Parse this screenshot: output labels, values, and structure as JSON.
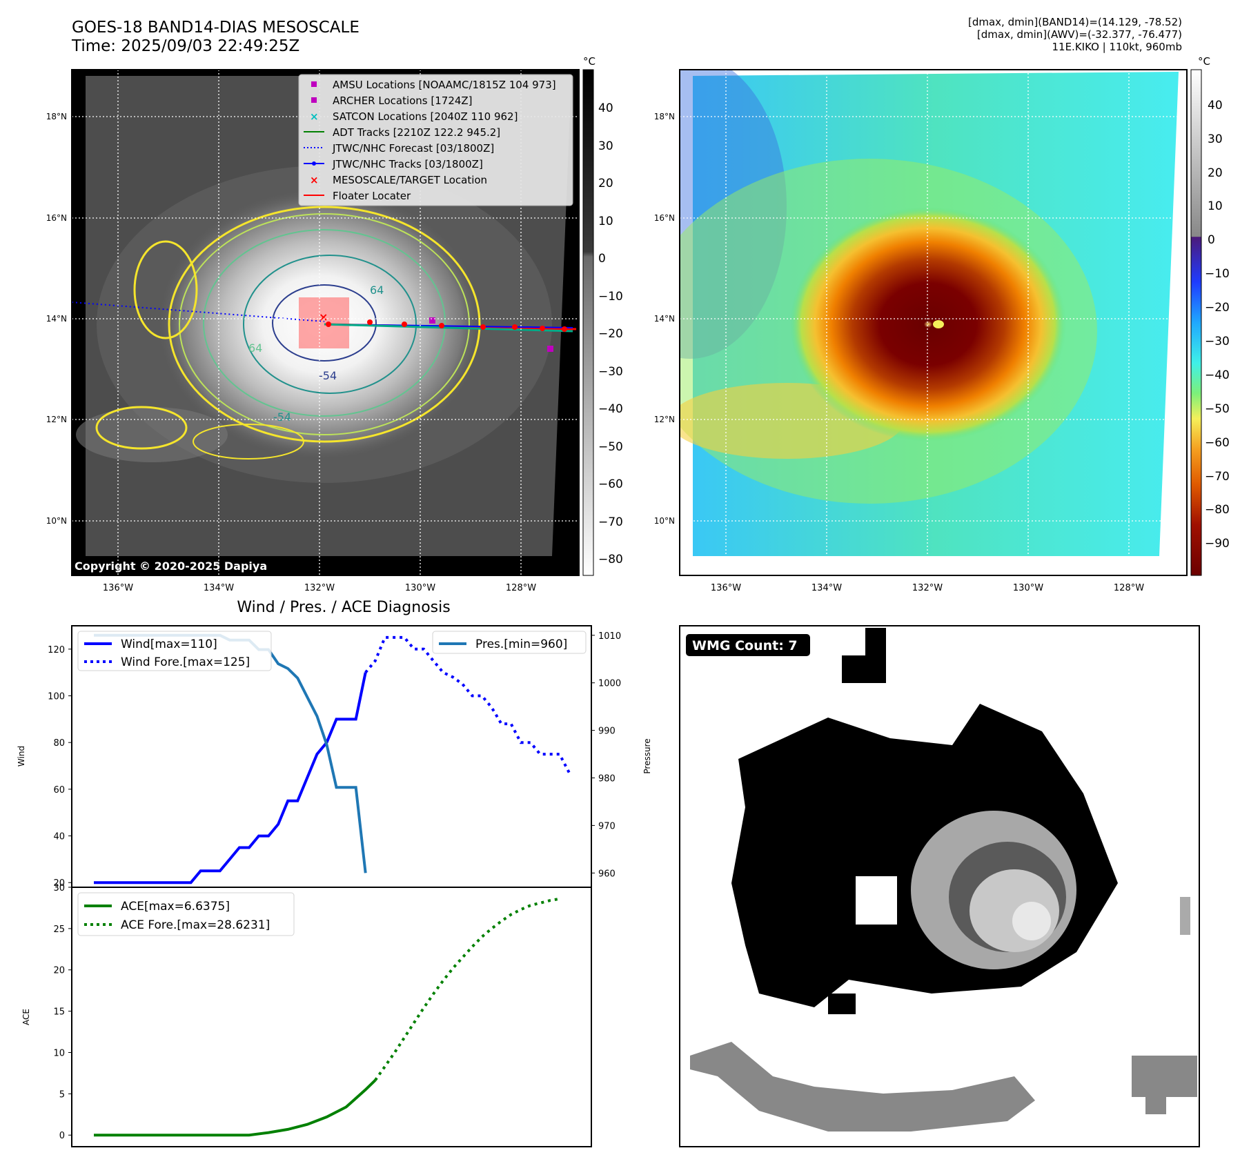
{
  "header": {
    "title_line1": "GOES-18 BAND14-DIAS MESOSCALE",
    "title_line2": "Time: 2025/09/03 22:49:25Z",
    "info_line1": "[dmax, dmin](BAND14)=(14.129, -78.52)",
    "info_line2": "[dmax, dmin](AWV)=(-32.377, -76.477)",
    "info_line3": "11E.KIKO | 110kt, 960mb"
  },
  "ir_panel": {
    "copyright": "Copyright © 2020-2025 Dapiya",
    "lat_labels": [
      "18°N",
      "16°N",
      "14°N",
      "12°N",
      "10°N"
    ],
    "lon_labels": [
      "136°W",
      "134°W",
      "132°W",
      "130°W",
      "128°W"
    ],
    "colorbar_unit": "°C",
    "colorbar_ticks": [
      "40",
      "30",
      "20",
      "10",
      "0",
      "−10",
      "−20",
      "−30",
      "−40",
      "−50",
      "−60",
      "−70",
      "−80"
    ],
    "contour_labels": [
      "64",
      "-54",
      "-54",
      "64"
    ],
    "legend": [
      {
        "label": "AMSU Locations [NOAAMC/1815Z 104 973]",
        "color": "#bf00bf",
        "marker": "square"
      },
      {
        "label": "ARCHER Locations [1724Z]",
        "color": "#bf00bf",
        "marker": "square"
      },
      {
        "label": "SATCON Locations [2040Z 110 962]",
        "color": "#00bfbf",
        "marker": "x"
      },
      {
        "label": "ADT Tracks [2210Z 122.2 945.2]",
        "color": "#008000",
        "marker": "line"
      },
      {
        "label": "JTWC/NHC Forecast [03/1800Z]",
        "color": "#0000ff",
        "marker": "dotted"
      },
      {
        "label": "JTWC/NHC Tracks [03/1800Z]",
        "color": "#0000ff",
        "marker": "line-dot"
      },
      {
        "label": "MESOSCALE/TARGET Location",
        "color": "#ff0000",
        "marker": "x"
      },
      {
        "label": "Floater Locater",
        "color": "#ff0000",
        "marker": "line"
      }
    ]
  },
  "awv_panel": {
    "lat_labels": [
      "18°N",
      "16°N",
      "14°N",
      "12°N",
      "10°N"
    ],
    "lon_labels": [
      "136°W",
      "134°W",
      "132°W",
      "130°W",
      "128°W"
    ],
    "colorbar_unit": "°C",
    "colorbar_ticks": [
      "40",
      "30",
      "20",
      "10",
      "0",
      "−10",
      "−20",
      "−30",
      "−40",
      "−50",
      "−60",
      "−70",
      "−80",
      "−90"
    ]
  },
  "wmg_panel": {
    "badge": "WMG Count: 7"
  },
  "chart_data": [
    {
      "type": "line",
      "title": "Wind / Pres. / ACE Diagnosis",
      "ylabel": "Wind",
      "ylabel_right": "Pressure",
      "ylim": [
        18,
        130
      ],
      "ylim_right": [
        957,
        1012
      ],
      "yticks": [
        "20",
        "40",
        "60",
        "80",
        "100",
        "120"
      ],
      "yticks_right": [
        "960",
        "970",
        "980",
        "990",
        "1000",
        "1010"
      ],
      "x": [
        0,
        1,
        2,
        3,
        4,
        5,
        6,
        7,
        8,
        9,
        10,
        11,
        12,
        13,
        14,
        15,
        16,
        17,
        18,
        19,
        20,
        21,
        22,
        23,
        24,
        25,
        26,
        27,
        28,
        29,
        30,
        31,
        32,
        33,
        34,
        35,
        36,
        37,
        38,
        39,
        40,
        41,
        42,
        43,
        44,
        45,
        46,
        47,
        48,
        49
      ],
      "series": [
        {
          "name": "Wind[max=110]",
          "axis": "left",
          "style": "solid",
          "color": "#0000ff",
          "points": [
            [
              0,
              20
            ],
            [
              10,
              20
            ],
            [
              11,
              25
            ],
            [
              13,
              25
            ],
            [
              14,
              30
            ],
            [
              15,
              35
            ],
            [
              16,
              35
            ],
            [
              17,
              40
            ],
            [
              18,
              40
            ],
            [
              19,
              45
            ],
            [
              20,
              55
            ],
            [
              21,
              55
            ],
            [
              22,
              65
            ],
            [
              23,
              75
            ],
            [
              24,
              80
            ],
            [
              25,
              90
            ],
            [
              27,
              90
            ],
            [
              28,
              110
            ]
          ]
        },
        {
          "name": "Wind Fore.[max=125]",
          "axis": "left",
          "style": "dotted",
          "color": "#0000ff",
          "points": [
            [
              28,
              110
            ],
            [
              29,
              115
            ],
            [
              30,
              125
            ],
            [
              32,
              125
            ],
            [
              33,
              120
            ],
            [
              34,
              120
            ],
            [
              35,
              115
            ],
            [
              36,
              110
            ],
            [
              37,
              108
            ],
            [
              38,
              105
            ],
            [
              39,
              100
            ],
            [
              40,
              100
            ],
            [
              41,
              95
            ],
            [
              42,
              88
            ],
            [
              43,
              88
            ],
            [
              44,
              80
            ],
            [
              45,
              80
            ],
            [
              46,
              75
            ],
            [
              47,
              75
            ],
            [
              48,
              75
            ],
            [
              49,
              67
            ]
          ]
        },
        {
          "name": "Pres.[min=960]",
          "axis": "right",
          "style": "solid",
          "color": "#1f77b4",
          "points": [
            [
              0,
              1010
            ],
            [
              13,
              1010
            ],
            [
              14,
              1009
            ],
            [
              16,
              1009
            ],
            [
              17,
              1007
            ],
            [
              18,
              1007
            ],
            [
              19,
              1004
            ],
            [
              20,
              1003
            ],
            [
              21,
              1001
            ],
            [
              22,
              997
            ],
            [
              23,
              993
            ],
            [
              24,
              987
            ],
            [
              25,
              978
            ],
            [
              27,
              978
            ],
            [
              28,
              960
            ]
          ]
        }
      ]
    },
    {
      "type": "line",
      "ylabel": "ACE",
      "ylim": [
        -1.4,
        30
      ],
      "yticks": [
        "0",
        "5",
        "10",
        "15",
        "20",
        "25",
        "30"
      ],
      "series": [
        {
          "name": "ACE[max=6.6375]",
          "style": "solid",
          "color": "#008000",
          "points": [
            [
              0,
              0
            ],
            [
              10,
              0
            ],
            [
              16,
              0
            ],
            [
              18,
              0.3
            ],
            [
              20,
              0.7
            ],
            [
              22,
              1.3
            ],
            [
              24,
              2.2
            ],
            [
              26,
              3.4
            ],
            [
              28,
              5.5
            ],
            [
              29,
              6.64
            ]
          ]
        },
        {
          "name": "ACE Fore.[max=28.6231]",
          "style": "dotted",
          "color": "#008000",
          "points": [
            [
              29,
              6.64
            ],
            [
              30,
              8.3
            ],
            [
              31,
              10.0
            ],
            [
              32,
              11.8
            ],
            [
              33,
              13.6
            ],
            [
              34,
              15.4
            ],
            [
              35,
              17.1
            ],
            [
              36,
              18.7
            ],
            [
              37,
              20.2
            ],
            [
              38,
              21.5
            ],
            [
              39,
              22.8
            ],
            [
              40,
              24.0
            ],
            [
              41,
              25.0
            ],
            [
              42,
              25.9
            ],
            [
              43,
              26.7
            ],
            [
              44,
              27.3
            ],
            [
              45,
              27.8
            ],
            [
              46,
              28.1
            ],
            [
              47,
              28.4
            ],
            [
              48,
              28.6
            ]
          ]
        }
      ]
    }
  ]
}
